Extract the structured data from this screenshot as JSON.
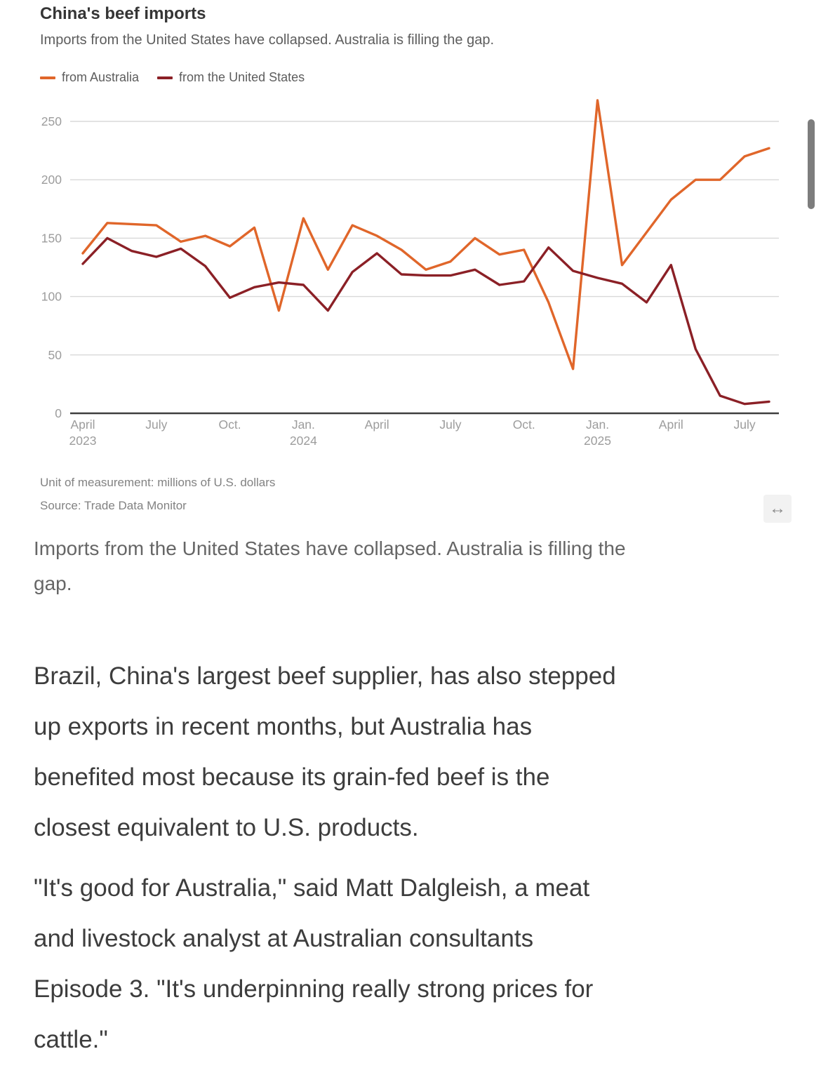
{
  "chart": {
    "title": "China's beef imports",
    "subtitle": "Imports from the United States have collapsed. Australia is filling the gap.",
    "legend": [
      {
        "label": "from Australia",
        "color": "#e0662a"
      },
      {
        "label": "from the United States",
        "color": "#8b2026"
      }
    ],
    "footnote_unit": "Unit of measurement: millions of U.S. dollars",
    "footnote_source": "Source: Trade Data Monitor",
    "expand_icon": "↔"
  },
  "chart_data": {
    "type": "line",
    "title": "China's beef imports",
    "subtitle": "Imports from the United States have collapsed. Australia is filling the gap.",
    "unit": "millions of U.S. dollars",
    "source": "Trade Data Monitor",
    "ylim": [
      0,
      250
    ],
    "yticks": [
      0,
      50,
      100,
      150,
      200,
      250
    ],
    "grid": true,
    "legend_position": "top",
    "x": [
      "Apr 2023",
      "May 2023",
      "Jun 2023",
      "Jul 2023",
      "Aug 2023",
      "Sep 2023",
      "Oct 2023",
      "Nov 2023",
      "Dec 2023",
      "Jan 2024",
      "Feb 2024",
      "Mar 2024",
      "Apr 2024",
      "May 2024",
      "Jun 2024",
      "Jul 2024",
      "Aug 2024",
      "Sep 2024",
      "Oct 2024",
      "Nov 2024",
      "Dec 2024",
      "Jan 2025",
      "Feb 2025",
      "Mar 2025",
      "Apr 2025",
      "May 2025",
      "Jun 2025",
      "Jul 2025",
      "Aug 2025"
    ],
    "xticks": [
      {
        "index": 0,
        "label": "April",
        "year": "2023"
      },
      {
        "index": 3,
        "label": "July",
        "year": ""
      },
      {
        "index": 6,
        "label": "Oct.",
        "year": ""
      },
      {
        "index": 9,
        "label": "Jan.",
        "year": "2024"
      },
      {
        "index": 12,
        "label": "April",
        "year": ""
      },
      {
        "index": 15,
        "label": "July",
        "year": ""
      },
      {
        "index": 18,
        "label": "Oct.",
        "year": ""
      },
      {
        "index": 21,
        "label": "Jan.",
        "year": "2025"
      },
      {
        "index": 24,
        "label": "April",
        "year": ""
      },
      {
        "index": 27,
        "label": "July",
        "year": ""
      }
    ],
    "series": [
      {
        "name": "from Australia",
        "color": "#e0662a",
        "values": [
          137,
          163,
          162,
          161,
          147,
          152,
          143,
          159,
          88,
          167,
          123,
          161,
          152,
          140,
          123,
          130,
          150,
          136,
          140,
          95,
          38,
          268,
          127,
          155,
          183,
          200,
          200,
          220,
          227
        ]
      },
      {
        "name": "from the United States",
        "color": "#8b2026",
        "values": [
          128,
          150,
          139,
          134,
          141,
          126,
          99,
          108,
          112,
          110,
          88,
          121,
          137,
          119,
          118,
          118,
          123,
          110,
          113,
          142,
          122,
          116,
          111,
          95,
          127,
          55,
          15,
          8,
          10
        ]
      }
    ]
  },
  "caption": {
    "lines": [
      "Imports from the United States have collapsed. Australia is filling the",
      "gap."
    ]
  },
  "paragraphs": [
    {
      "lines": [
        "Brazil, China's largest beef supplier, has also stepped",
        "up exports in recent months, but Australia has",
        "benefited most because its grain-fed beef is the",
        "closest equivalent to U.S. products."
      ]
    },
    {
      "lines": [
        "\"It's good for Australia,\" said Matt Dalgleish, a meat",
        "and livestock analyst at Australian consultants",
        "Episode 3. \"It's underpinning really strong prices for",
        "cattle.\""
      ]
    }
  ],
  "colors": {
    "gridline": "#d8d8d8",
    "axis_line": "#3f3f3f",
    "axis_label": "#9c9c9c",
    "scrollbar": "#7d7d7d"
  }
}
